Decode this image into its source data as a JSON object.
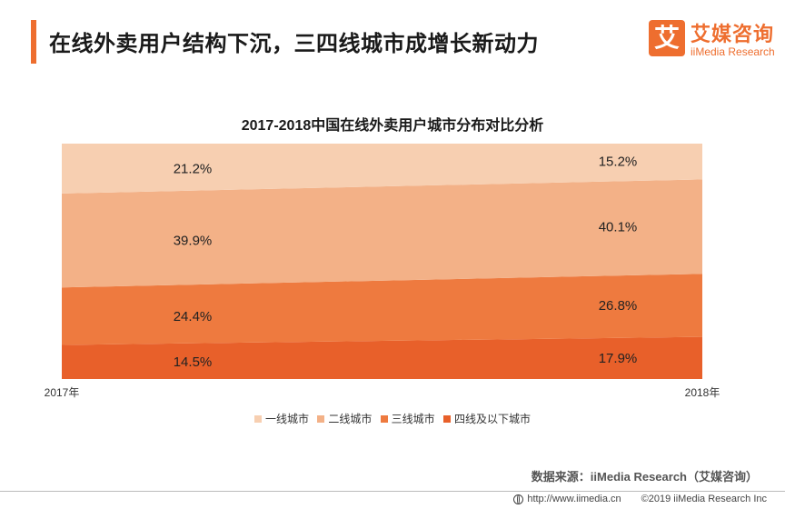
{
  "header": {
    "title": "在线外卖用户结构下沉，三四线城市成增长新动力",
    "logo_mark": "艾",
    "logo_cn": "艾媒咨询",
    "logo_en": "iiMedia Research"
  },
  "chart_data": {
    "type": "area",
    "title": "2017-2018中国在线外卖用户城市分布对比分析",
    "x": [
      "2017年",
      "2018年"
    ],
    "stacking": "percent",
    "series": [
      {
        "name": "四线及以下城市",
        "values": [
          14.5,
          17.9
        ],
        "labels": [
          "14.5%",
          "17.9%"
        ],
        "color": "#e8602a"
      },
      {
        "name": "三线城市",
        "values": [
          24.4,
          26.8
        ],
        "labels": [
          "24.4%",
          "26.8%"
        ],
        "color": "#ee7a3f"
      },
      {
        "name": "二线城市",
        "values": [
          39.9,
          40.1
        ],
        "labels": [
          "39.9%",
          "40.1%"
        ],
        "color": "#f3b187"
      },
      {
        "name": "一线城市",
        "values": [
          21.2,
          15.2
        ],
        "labels": [
          "21.2%",
          "15.2%"
        ],
        "color": "#f7cfb1"
      }
    ],
    "legend": {
      "position": "bottom",
      "items": [
        {
          "label": "一线城市",
          "color": "#f7cfb1"
        },
        {
          "label": "二线城市",
          "color": "#f3b187"
        },
        {
          "label": "三线城市",
          "color": "#ee7a3f"
        },
        {
          "label": "四线及以下城市",
          "color": "#e8602a"
        }
      ]
    },
    "grid": false
  },
  "source": "数据来源：iiMedia Research（艾媒咨询）",
  "footer": {
    "url": "http://www.iimedia.cn",
    "copyright": "©2019  iiMedia Research  Inc"
  },
  "colors": {
    "accent": "#ee6e2f"
  }
}
